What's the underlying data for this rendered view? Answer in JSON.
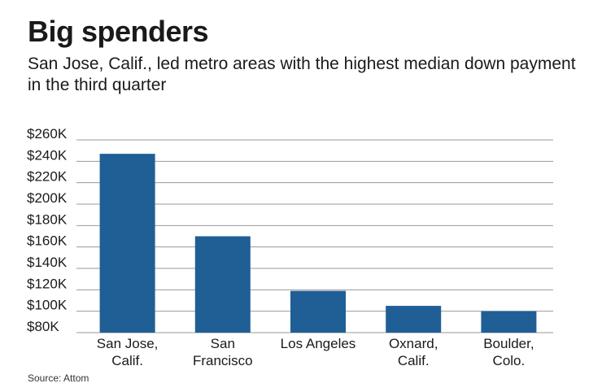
{
  "title": "Big spenders",
  "subtitle": "San Jose, Calif., led metro areas with the highest median down payment in the third quarter",
  "source": "Source: Attom",
  "colors": {
    "bar": "#1f5f96",
    "grid": "#9a9a9a"
  },
  "chart_data": {
    "type": "bar",
    "categories": [
      [
        "San Jose,",
        "Calif."
      ],
      [
        "San",
        "Francisco"
      ],
      [
        "Los Angeles"
      ],
      [
        "Oxnard,",
        "Calif."
      ],
      [
        "Boulder,",
        "Colo."
      ]
    ],
    "values": [
      247000,
      170000,
      119000,
      105000,
      100000
    ],
    "yticks": [
      "$80K",
      "$100K",
      "$120K",
      "$140K",
      "$160K",
      "$180K",
      "$200K",
      "$220K",
      "$240K",
      "$260K"
    ],
    "ytick_values": [
      80000,
      100000,
      120000,
      140000,
      160000,
      180000,
      200000,
      220000,
      240000,
      260000
    ],
    "ylim": [
      80000,
      260000
    ],
    "grid": true
  }
}
